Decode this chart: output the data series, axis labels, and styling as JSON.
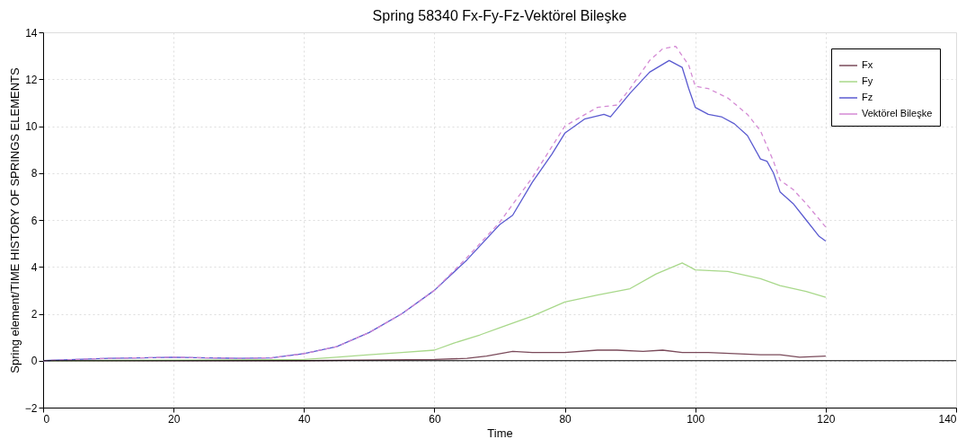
{
  "chart_data": {
    "type": "line",
    "title": "Spring 58340 Fx-Fy-Fz-Vektörel Bileşke",
    "xlabel": "Time",
    "ylabel": "Spring element/TIME HISTORY OF SPRINGS ELEMENTS",
    "xlim": [
      0,
      140
    ],
    "ylim": [
      -2,
      14
    ],
    "xticks": [
      0,
      20,
      40,
      60,
      80,
      100,
      120,
      140
    ],
    "yticks": [
      -2,
      0,
      2,
      4,
      6,
      8,
      10,
      12,
      14
    ],
    "grid": true,
    "legend": "top right",
    "ref_lines": [
      {
        "axis": "y",
        "value": 0,
        "color": "#000000"
      }
    ],
    "series": [
      {
        "name": "Fx",
        "color": "#7a4a5a",
        "line_style": "solid",
        "x": [
          0,
          20,
          40,
          60,
          65,
          68,
          72,
          75,
          80,
          85,
          88,
          92,
          95,
          98,
          102,
          106,
          110,
          113,
          116,
          120
        ],
        "values": [
          0,
          0,
          0,
          0.05,
          0.1,
          0.2,
          0.4,
          0.35,
          0.35,
          0.45,
          0.45,
          0.4,
          0.45,
          0.35,
          0.35,
          0.3,
          0.25,
          0.25,
          0.15,
          0.2
        ]
      },
      {
        "name": "Fy",
        "color": "#a8d88a",
        "line_style": "solid",
        "x": [
          0,
          20,
          40,
          45,
          50,
          55,
          60,
          63,
          67,
          70,
          75,
          80,
          85,
          90,
          94,
          98,
          100,
          105,
          110,
          113,
          117,
          120
        ],
        "values": [
          0,
          0.02,
          0.05,
          0.15,
          0.25,
          0.35,
          0.45,
          0.75,
          1.1,
          1.4,
          1.9,
          2.5,
          2.8,
          3.07,
          3.7,
          4.17,
          3.87,
          3.8,
          3.5,
          3.2,
          2.95,
          2.7
        ]
      },
      {
        "name": "Fz",
        "color": "#5a5ad0",
        "line_style": "solid",
        "x": [
          0,
          5,
          10,
          15,
          20,
          25,
          30,
          35,
          40,
          45,
          50,
          55,
          60,
          65,
          70,
          72,
          75,
          78,
          80,
          83,
          86,
          87,
          90,
          93,
          96,
          98,
          99,
          100,
          102,
          104,
          106,
          108,
          110,
          111,
          112,
          113,
          115,
          117,
          119,
          120
        ],
        "values": [
          0,
          0.05,
          0.1,
          0.12,
          0.15,
          0.12,
          0.1,
          0.12,
          0.3,
          0.6,
          1.2,
          2.0,
          3.0,
          4.3,
          5.8,
          6.2,
          7.6,
          8.8,
          9.7,
          10.3,
          10.5,
          10.4,
          11.4,
          12.3,
          12.8,
          12.5,
          11.6,
          10.8,
          10.5,
          10.4,
          10.1,
          9.6,
          8.6,
          8.5,
          8.0,
          7.2,
          6.7,
          6.0,
          5.3,
          5.1
        ]
      },
      {
        "name": "Vektörel Bileşke",
        "color": "#d48ad4",
        "line_style": "dashed",
        "x": [
          0,
          5,
          10,
          15,
          20,
          25,
          30,
          35,
          40,
          45,
          50,
          55,
          60,
          65,
          70,
          75,
          80,
          85,
          88,
          90,
          93,
          95,
          97,
          99,
          100,
          102,
          105,
          108,
          110,
          112,
          113,
          115,
          117,
          120
        ],
        "values": [
          0,
          0.05,
          0.1,
          0.12,
          0.15,
          0.12,
          0.1,
          0.12,
          0.3,
          0.6,
          1.2,
          2.0,
          3.0,
          4.4,
          5.9,
          7.8,
          10.0,
          10.8,
          10.9,
          11.6,
          12.8,
          13.3,
          13.4,
          12.6,
          11.7,
          11.6,
          11.2,
          10.5,
          9.8,
          8.5,
          7.7,
          7.3,
          6.7,
          5.7
        ]
      }
    ]
  }
}
